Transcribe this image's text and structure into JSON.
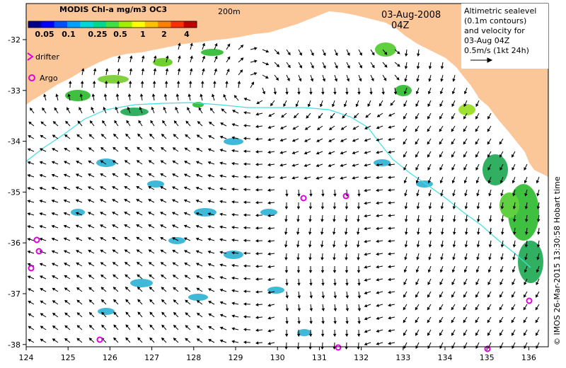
{
  "colorbar": {
    "title": "MODIS Chl-a mg/m3 OC3",
    "labels": [
      "0.05",
      "0.1",
      "0.25",
      "0.5",
      "1",
      "2",
      "4"
    ],
    "colors": [
      "#00008b",
      "#0000ff",
      "#0050ff",
      "#00a0ff",
      "#00d8d8",
      "#00d890",
      "#40e040",
      "#a0f000",
      "#ffff00",
      "#ffc000",
      "#ff8000",
      "#ff3000",
      "#c00000"
    ]
  },
  "depth_label": "200m",
  "date": "03-Aug-2008",
  "time": "04Z",
  "legend_box": {
    "lines": [
      "Altimetric sealevel",
      "(0.1m contours)",
      "and velocity for",
      "03-Aug 04Z",
      "0.5m/s (1kt 24h)"
    ]
  },
  "symbol_legend": {
    "drifter": "drifter",
    "argo": "Argo"
  },
  "credit": "© IMOS 26-Mar-2015 13:30:58 Hobart time",
  "axes": {
    "x_ticks": [
      "124",
      "125",
      "126",
      "127",
      "128",
      "129",
      "130",
      "131",
      "132",
      "133",
      "134",
      "135",
      "136"
    ],
    "y_ticks": [
      "-32",
      "-33",
      "-34",
      "-35",
      "-36",
      "-37",
      "-38"
    ]
  },
  "colors": {
    "land": "#fbc799",
    "ocean": "#ffffff",
    "depth_contour": "#40e0e0",
    "argo": "#e000e0",
    "arrow": "#000000"
  }
}
